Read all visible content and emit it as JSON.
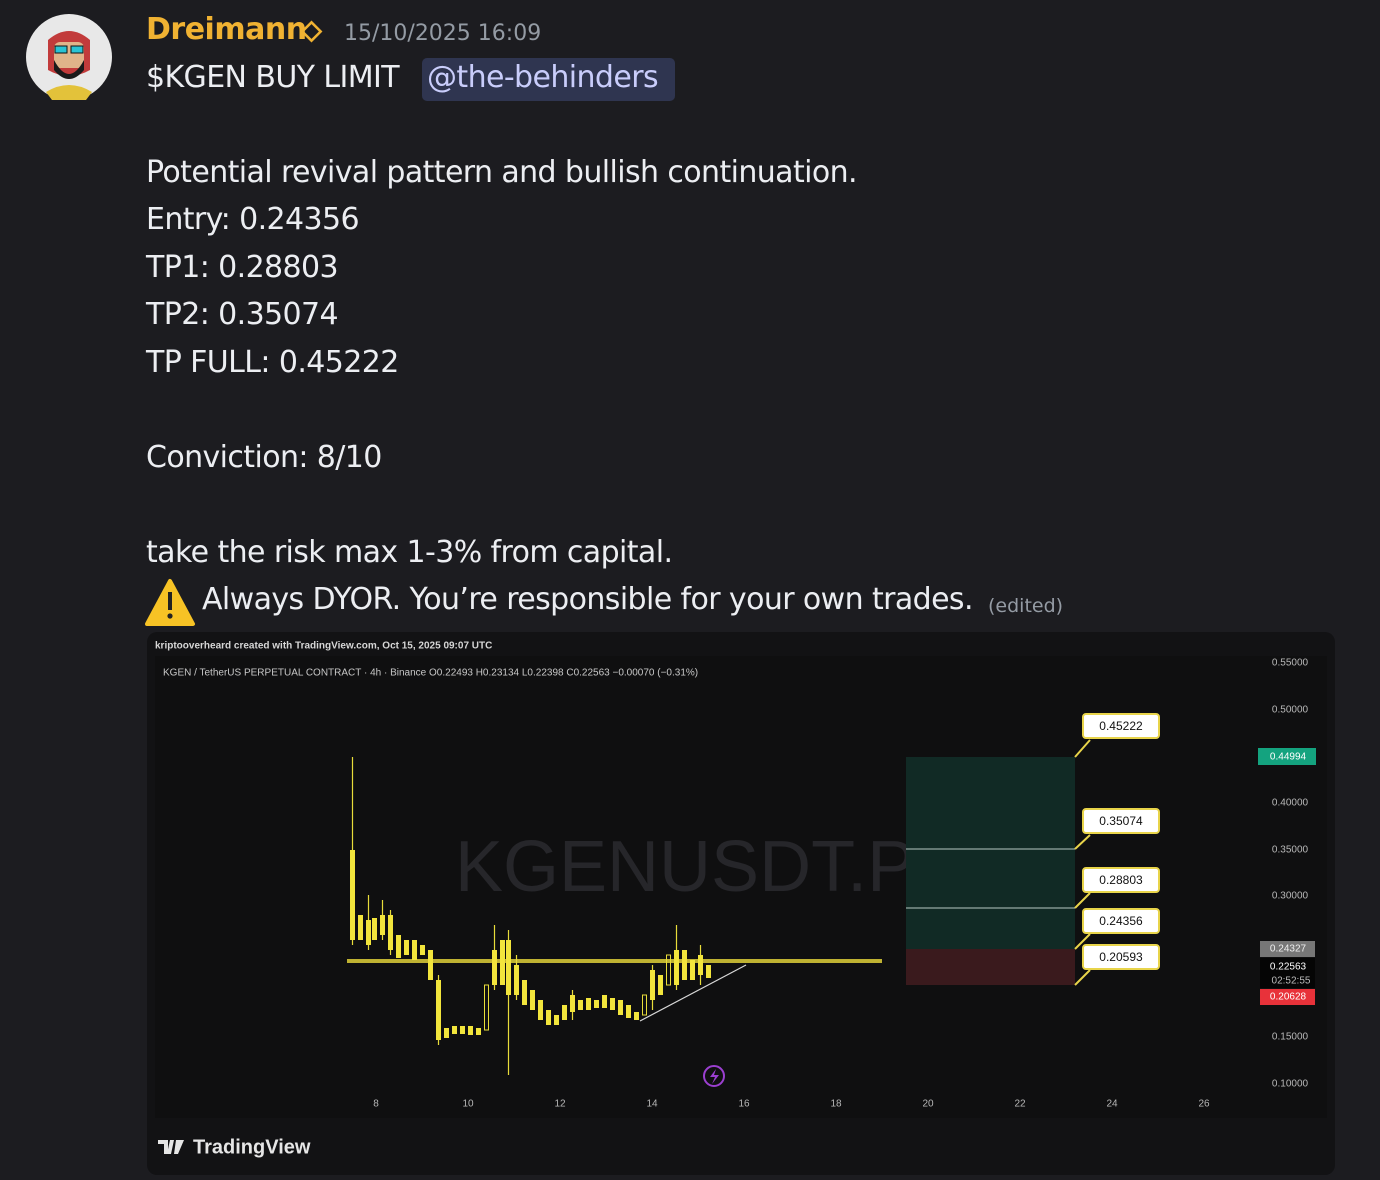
{
  "message": {
    "author": "Dreimann",
    "timestamp": "15/10/2025 16:09",
    "headline": "$KGEN BUY LIMIT",
    "mention": "@the-behinders",
    "lines": [
      "Potential revival pattern and bullish continuation.",
      "Entry: 0.24356",
      "TP1: 0.28803",
      "TP2: 0.35074",
      "TP FULL: 0.45222",
      "Conviction: 8/10",
      "take the risk max 1-3% from capital.",
      "Always DYOR. You’re responsible for your own trades."
    ],
    "edited": "(edited)"
  },
  "embed": {
    "credit": "kriptooverheard created with TradingView.com, Oct 15, 2025 09:07 UTC",
    "symbol_info": "KGEN / TetherUS PERPETUAL CONTRACT · 4h · Binance  O0.22493  H0.23134  L0.22398  C0.22563  −0.00070 (−0.31%)",
    "watermark": "KGENUSDT.P",
    "price_ticks": [
      "0.55000",
      "0.50000",
      "0.40000",
      "0.35000",
      "0.30000",
      "0.15000",
      "0.10000"
    ],
    "date_ticks": [
      "8",
      "10",
      "12",
      "14",
      "16",
      "18",
      "20",
      "22",
      "24",
      "26"
    ],
    "levels": [
      "0.45222",
      "0.35074",
      "0.28803",
      "0.24356",
      "0.20593"
    ],
    "price_tags": [
      "0.44994",
      "0.24327",
      "0.22563",
      "02:52:55",
      "0.20628"
    ],
    "brand": "TradingView"
  }
}
